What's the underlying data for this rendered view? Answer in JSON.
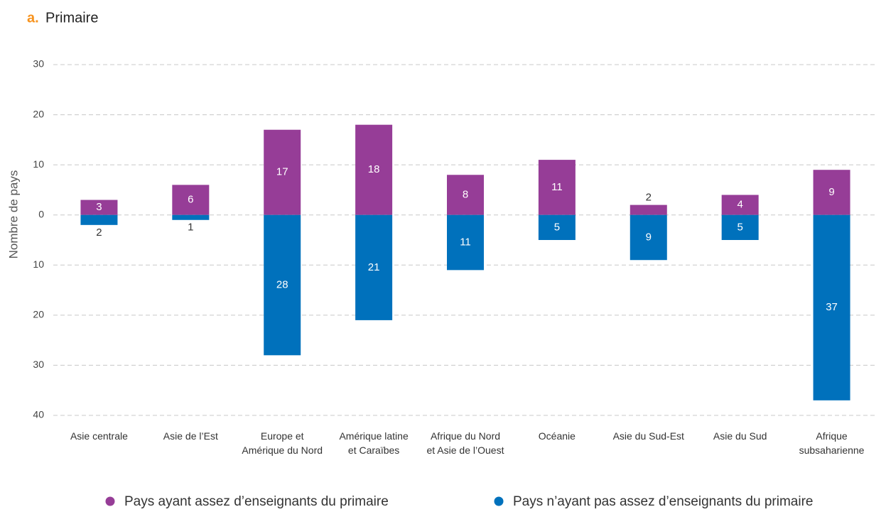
{
  "chart_data": {
    "type": "bar",
    "panel_label": "a.",
    "title": "Primaire",
    "y_label": "Nombre de pays",
    "categories": [
      "Asie centrale",
      "Asie de l’Est",
      "Europe et\nAmérique du Nord",
      "Amérique latine\net Caraïbes",
      "Afrique du Nord\net Asie de l’Ouest",
      "Océanie",
      "Asie du Sud-Est",
      "Asie du Sud",
      "Afrique\nsubsaharienne"
    ],
    "series": [
      {
        "name": "Pays ayant assez d’enseignants du primaire",
        "color": "#963d97",
        "values": [
          3,
          6,
          17,
          18,
          8,
          11,
          2,
          4,
          9
        ]
      },
      {
        "name": "Pays n’ayant pas assez d’enseignants du primaire",
        "color": "#0071bc",
        "values": [
          -2,
          -1,
          -28,
          -21,
          -11,
          -5,
          -9,
          -5,
          -37
        ],
        "value_labels": [
          "2",
          "1",
          "28",
          "21",
          "11",
          "5",
          "9",
          "5",
          "37"
        ]
      }
    ],
    "ylim": [
      -40,
      30
    ],
    "yticks": [
      {
        "value": -40,
        "label": "40"
      },
      {
        "value": -30,
        "label": "30"
      },
      {
        "value": -20,
        "label": "20"
      },
      {
        "value": -10,
        "label": "10"
      },
      0,
      10,
      20,
      30
    ],
    "grid": true,
    "legend": "bottom"
  }
}
